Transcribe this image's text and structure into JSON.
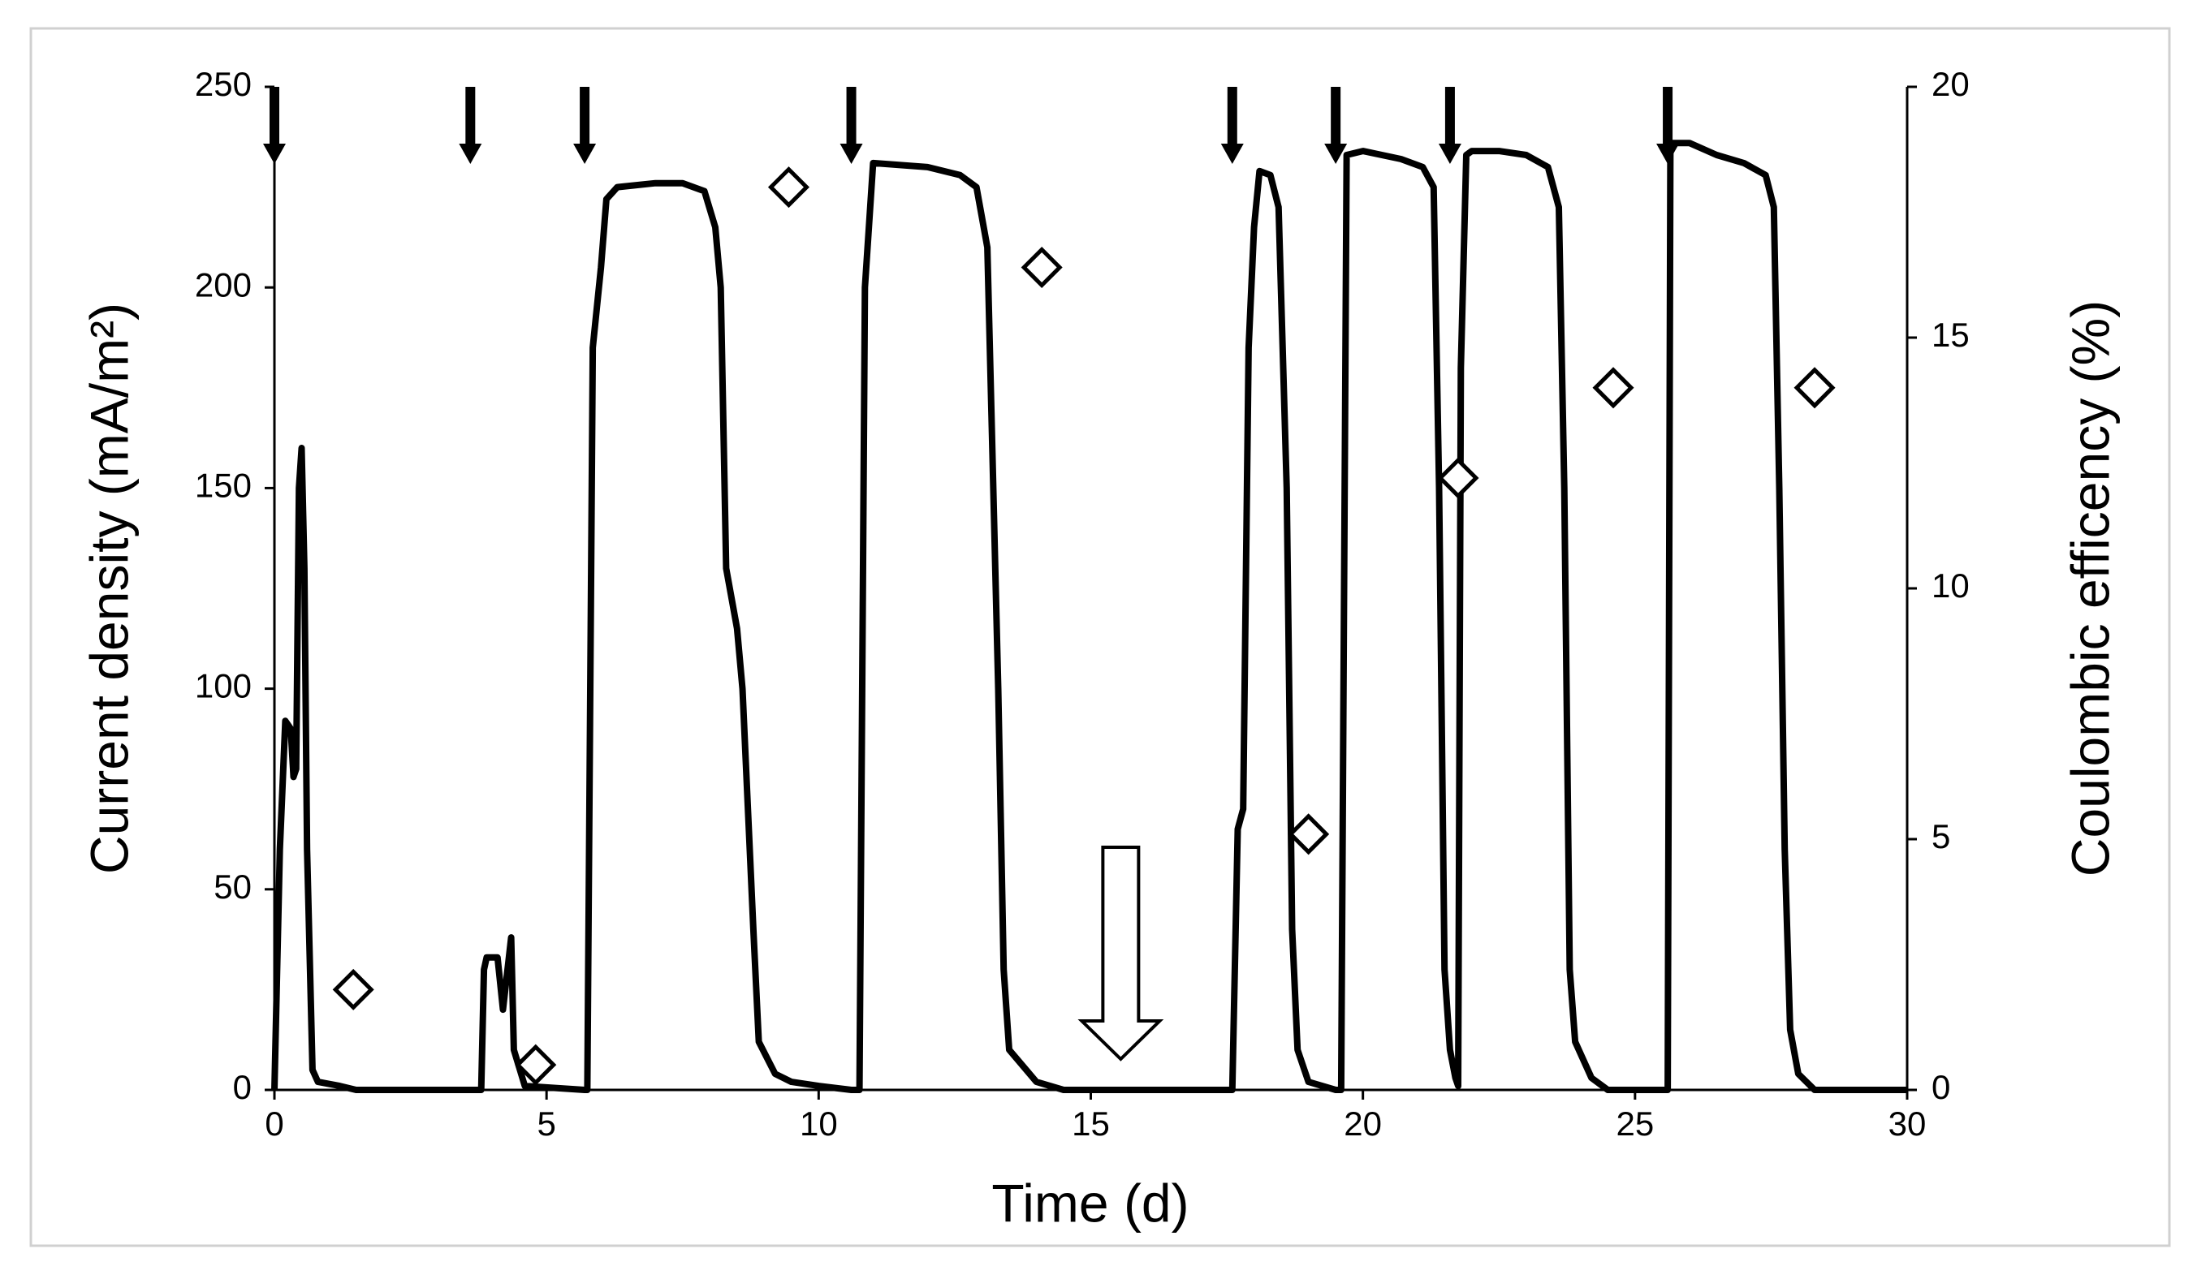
{
  "chart_data": {
    "type": "line",
    "x_label": "Time (d)",
    "y_label": "Current density (mA/m²)",
    "y2_label": "Coulombic efficency (%)",
    "xlim": [
      0,
      30
    ],
    "xticks": [
      0,
      5,
      10,
      15,
      20,
      25,
      30
    ],
    "ylim": [
      0,
      250
    ],
    "yticks": [
      0,
      50,
      100,
      150,
      200,
      250
    ],
    "y2lim": [
      0,
      20
    ],
    "y2ticks": [
      0,
      5,
      10,
      15,
      20
    ],
    "grid": false,
    "event_times": [
      0,
      3.6,
      5.7,
      10.6,
      17.6,
      19.5,
      21.6,
      25.6
    ],
    "hollow_arrow_x": 15.55,
    "series": [
      {
        "color": "#000000",
        "marker": "none",
        "x": [
          0,
          0.1,
          0.2,
          0.3,
          0.35,
          0.4,
          0.45,
          0.5,
          0.55,
          0.6,
          0.7,
          0.8,
          1.2,
          1.5,
          3.6,
          3.8,
          3.85,
          3.9,
          4.1,
          4.2,
          4.35,
          4.4,
          4.6,
          5.7,
          5.75,
          5.85,
          6.0,
          6.1,
          6.3,
          7.0,
          7.5,
          7.9,
          8.1,
          8.2,
          8.3,
          8.5,
          8.6,
          8.8,
          8.9,
          9.2,
          9.5,
          10.0,
          10.6,
          10.75,
          10.85,
          11.0,
          12.0,
          12.6,
          12.9,
          13.1,
          13.3,
          13.4,
          13.5,
          14.0,
          14.5,
          17.6,
          17.7,
          17.8,
          17.9,
          18.0,
          18.1,
          18.3,
          18.45,
          18.6,
          18.7,
          18.8,
          19.0,
          19.5,
          19.6,
          19.7,
          20.0,
          20.7,
          21.1,
          21.3,
          21.4,
          21.5,
          21.6,
          21.7,
          21.75,
          21.8,
          21.9,
          22.0,
          22.5,
          23.0,
          23.4,
          23.6,
          23.7,
          23.8,
          23.9,
          24.2,
          24.5,
          25.6,
          25.65,
          26.0,
          26.5,
          27.0,
          27.4,
          27.55,
          27.65,
          27.75,
          27.85,
          28.0,
          28.3,
          30
        ],
        "values": [
          0,
          60,
          92,
          90,
          78,
          80,
          150,
          160,
          130,
          60,
          5,
          2,
          1,
          0,
          0,
          0,
          30,
          33,
          33,
          20,
          38,
          10,
          1,
          0,
          0,
          185,
          205,
          222,
          225,
          226,
          226,
          224,
          215,
          200,
          130,
          115,
          100,
          40,
          12,
          4,
          2,
          1,
          0,
          0,
          200,
          231,
          230,
          228,
          225,
          210,
          100,
          30,
          10,
          2,
          0,
          0,
          65,
          70,
          185,
          215,
          229,
          228,
          220,
          150,
          40,
          10,
          2,
          0,
          0,
          233,
          234,
          232,
          230,
          225,
          150,
          30,
          10,
          3,
          1,
          180,
          233,
          234,
          234,
          233,
          230,
          220,
          150,
          30,
          12,
          3,
          0,
          0,
          236,
          236,
          233,
          231,
          228,
          220,
          150,
          60,
          15,
          4,
          0,
          0
        ]
      },
      {
        "color": "#000000",
        "marker": "diamond",
        "axis": "y2",
        "x": [
          1.45,
          4.8,
          9.45,
          14.1,
          19.0,
          21.75,
          24.6,
          28.3
        ],
        "values": [
          2.0,
          0.5,
          18.0,
          16.4,
          5.1,
          12.2,
          14.0,
          14.0
        ]
      }
    ]
  }
}
